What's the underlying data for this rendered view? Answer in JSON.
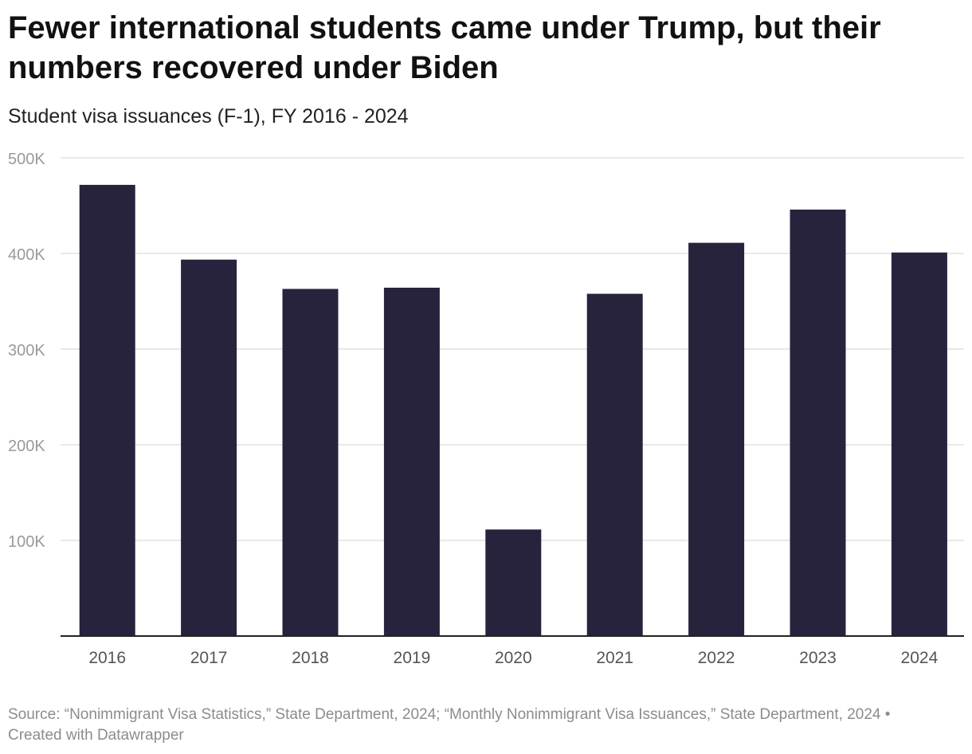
{
  "header": {
    "title": "Fewer international students came under Trump, but their numbers recovered under Biden",
    "subtitle": "Student visa issuances (F-1), FY 2016 - 2024"
  },
  "footer": {
    "source": "Source: “Nonimmigrant Visa Statistics,” State Department, 2024; “Monthly Nonimmigrant Visa Issuances,” State Department, 2024 • Created with Datawrapper"
  },
  "colors": {
    "bar": "#27233d",
    "grid": "#e0e0e0",
    "tick_text": "#9a9a9a",
    "baseline": "#222222"
  },
  "chart_data": {
    "type": "bar",
    "title": "Fewer international students came under Trump, but their numbers recovered under Biden",
    "subtitle": "Student visa issuances (F-1), FY 2016 - 2024",
    "xlabel": "",
    "ylabel": "",
    "categories": [
      "2016",
      "2017",
      "2018",
      "2019",
      "2020",
      "2021",
      "2022",
      "2023",
      "2024"
    ],
    "values": [
      471728,
      393573,
      362929,
      364204,
      111387,
      357839,
      411131,
      445889,
      401000
    ],
    "ylim": [
      0,
      500000
    ],
    "yticks": [
      100000,
      200000,
      300000,
      400000,
      500000
    ],
    "ytick_labels": [
      "100K",
      "200K",
      "300K",
      "400K",
      "500K"
    ],
    "grid": true,
    "legend": "none"
  }
}
